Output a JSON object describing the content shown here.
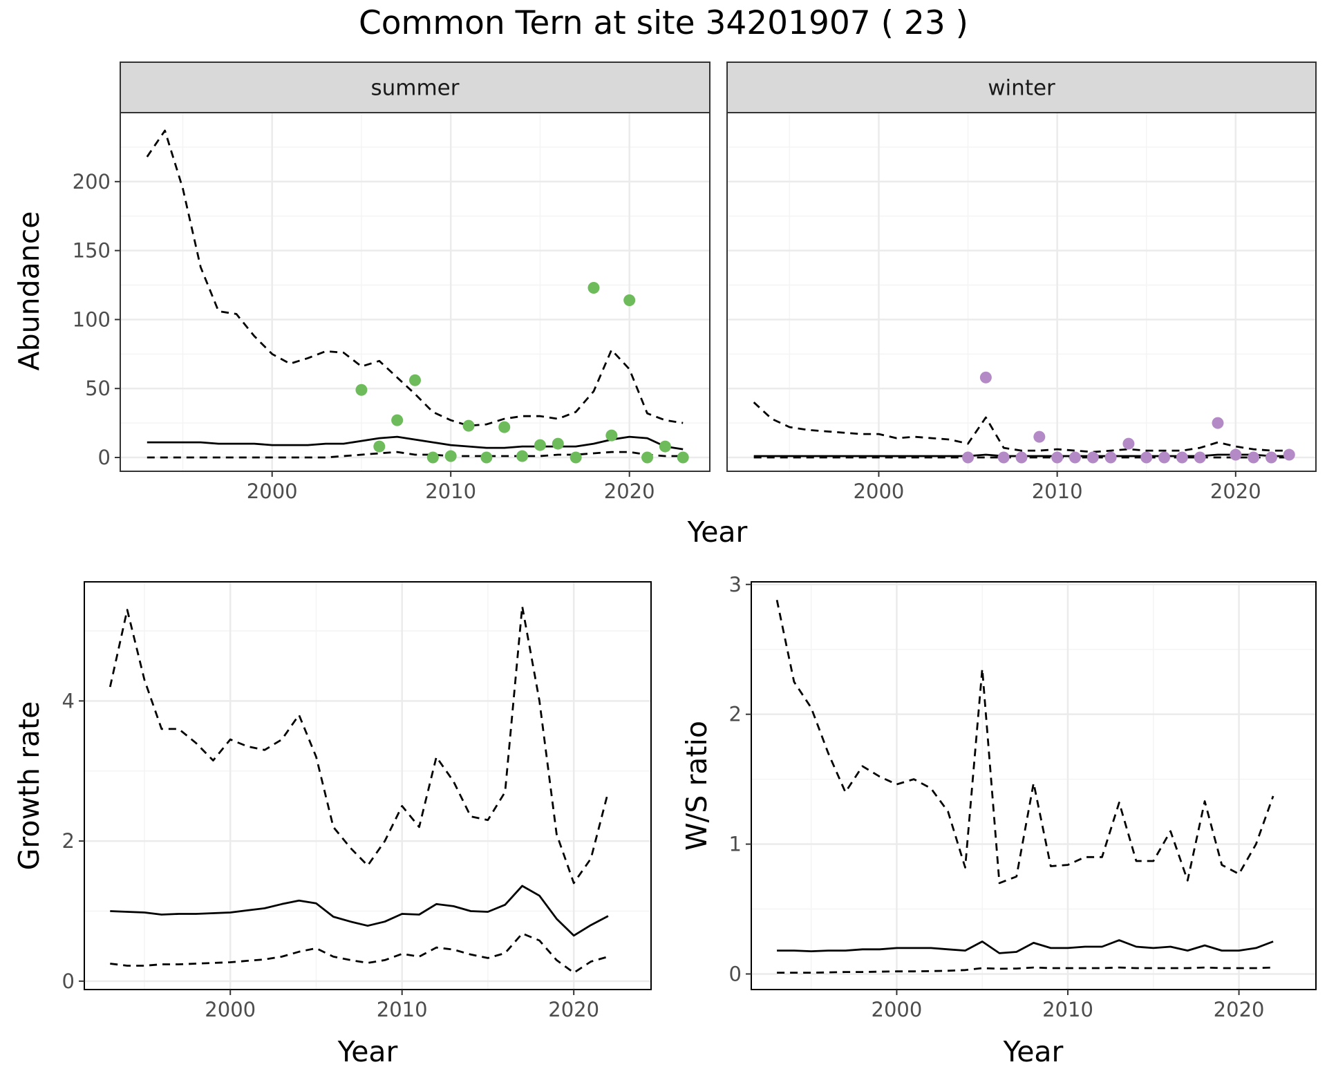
{
  "title": "Common Tern at site 34201907 ( 23 )",
  "colors": {
    "summer_points": "#6dbb5a",
    "winter_points": "#b38ac6",
    "line": "#000000",
    "panel_border": "#333333",
    "strip_fill": "#d9d9d9",
    "grid_major": "#ebebeb",
    "grid_minor": "#f4f4f4"
  },
  "chart_data": [
    {
      "type": "line",
      "panel": "summer",
      "strip": "summer",
      "xlabel": "Year",
      "ylabel": "Abundance",
      "xlim": [
        1991.5,
        2024.5
      ],
      "ylim": [
        -10,
        250
      ],
      "xticks": [
        2000,
        2010,
        2020
      ],
      "yticks": [
        0,
        50,
        100,
        150,
        200
      ],
      "grid": true,
      "x": [
        1993,
        1994,
        1995,
        1996,
        1997,
        1998,
        1999,
        2000,
        2001,
        2002,
        2003,
        2004,
        2005,
        2006,
        2007,
        2008,
        2009,
        2010,
        2011,
        2012,
        2013,
        2014,
        2015,
        2016,
        2017,
        2018,
        2019,
        2020,
        2021,
        2022,
        2023
      ],
      "series": [
        {
          "style": "solid",
          "values": [
            11,
            11,
            11,
            11,
            10,
            10,
            10,
            9,
            9,
            9,
            10,
            10,
            12,
            14,
            15,
            13,
            11,
            9,
            8,
            7,
            7,
            8,
            8,
            8,
            8,
            10,
            13,
            15,
            14,
            8,
            6
          ]
        },
        {
          "style": "dashed",
          "values": [
            218,
            237,
            195,
            138,
            106,
            104,
            88,
            75,
            68,
            72,
            77,
            76,
            66,
            70,
            58,
            46,
            33,
            27,
            23,
            24,
            28,
            30,
            30,
            28,
            33,
            48,
            78,
            64,
            32,
            27,
            25
          ]
        },
        {
          "style": "dashed",
          "values": [
            0,
            0,
            0,
            0,
            0,
            0,
            0,
            0,
            0,
            0,
            0,
            1,
            2,
            3,
            4,
            2,
            2,
            1,
            1,
            1,
            1,
            1,
            1,
            2,
            2,
            3,
            4,
            4,
            2,
            1,
            1
          ]
        }
      ],
      "points": {
        "x": [
          2005,
          2006,
          2007,
          2008,
          2009,
          2010,
          2011,
          2012,
          2013,
          2014,
          2015,
          2016,
          2017,
          2018,
          2019,
          2020,
          2021,
          2022,
          2023
        ],
        "y": [
          49,
          8,
          27,
          56,
          0,
          1,
          23,
          0,
          22,
          1,
          9,
          10,
          0,
          123,
          16,
          114,
          0,
          8,
          0
        ]
      }
    },
    {
      "type": "line",
      "panel": "winter",
      "strip": "winter",
      "xlabel": "Year",
      "ylabel": "Abundance",
      "xlim": [
        1991.5,
        2024.5
      ],
      "ylim": [
        -10,
        250
      ],
      "xticks": [
        2000,
        2010,
        2020
      ],
      "yticks": [
        0,
        50,
        100,
        150,
        200
      ],
      "grid": true,
      "x": [
        1993,
        1994,
        1995,
        1996,
        1997,
        1998,
        1999,
        2000,
        2001,
        2002,
        2003,
        2004,
        2005,
        2006,
        2007,
        2008,
        2009,
        2010,
        2011,
        2012,
        2013,
        2014,
        2015,
        2016,
        2017,
        2018,
        2019,
        2020,
        2021,
        2022,
        2023
      ],
      "series": [
        {
          "style": "solid",
          "values": [
            1,
            1,
            1,
            1,
            1,
            1,
            1,
            1,
            1,
            1,
            1,
            1,
            1,
            2,
            1,
            1,
            1,
            1,
            1,
            1,
            1,
            1,
            1,
            1,
            1,
            1,
            2,
            2,
            2,
            1,
            1
          ]
        },
        {
          "style": "dashed",
          "values": [
            40,
            28,
            22,
            20,
            19,
            18,
            17,
            17,
            14,
            15,
            14,
            13,
            10,
            29,
            7,
            5,
            5,
            6,
            5,
            4,
            5,
            6,
            5,
            5,
            5,
            7,
            11,
            8,
            6,
            5,
            5
          ]
        },
        {
          "style": "dashed",
          "values": [
            0,
            0,
            0,
            0,
            0,
            0,
            0,
            0,
            0,
            0,
            0,
            0,
            0,
            0,
            0,
            0,
            0,
            0,
            0,
            0,
            0,
            0,
            0,
            0,
            0,
            0,
            0,
            0,
            0,
            0,
            0
          ]
        }
      ],
      "points": {
        "x": [
          2005,
          2006,
          2007,
          2008,
          2009,
          2010,
          2011,
          2012,
          2013,
          2014,
          2015,
          2016,
          2017,
          2018,
          2019,
          2020,
          2021,
          2022,
          2023
        ],
        "y": [
          0,
          58,
          0,
          0,
          15,
          0,
          0,
          0,
          0,
          10,
          0,
          0,
          0,
          0,
          25,
          2,
          0,
          0,
          2
        ]
      }
    },
    {
      "type": "line",
      "panel": "growth",
      "xlabel": "Year",
      "ylabel": "Growth rate",
      "xlim": [
        1991.5,
        2024.5
      ],
      "ylim": [
        -0.12,
        5.7
      ],
      "xticks": [
        2000,
        2010,
        2020
      ],
      "yticks": [
        0,
        2,
        4
      ],
      "grid": true,
      "x": [
        1993,
        1994,
        1995,
        1996,
        1997,
        1998,
        1999,
        2000,
        2001,
        2002,
        2003,
        2004,
        2005,
        2006,
        2007,
        2008,
        2009,
        2010,
        2011,
        2012,
        2013,
        2014,
        2015,
        2016,
        2017,
        2018,
        2019,
        2020,
        2021,
        2022
      ],
      "series": [
        {
          "style": "solid",
          "values": [
            1.0,
            0.99,
            0.98,
            0.95,
            0.96,
            0.96,
            0.97,
            0.98,
            1.01,
            1.04,
            1.1,
            1.15,
            1.11,
            0.92,
            0.85,
            0.79,
            0.85,
            0.96,
            0.95,
            1.1,
            1.07,
            1.0,
            0.99,
            1.09,
            1.36,
            1.22,
            0.89,
            0.65,
            0.8,
            0.93
          ]
        },
        {
          "style": "dashed",
          "values": [
            4.2,
            5.3,
            4.3,
            3.6,
            3.6,
            3.4,
            3.15,
            3.45,
            3.35,
            3.3,
            3.45,
            3.8,
            3.2,
            2.2,
            1.9,
            1.65,
            2.0,
            2.5,
            2.2,
            3.2,
            2.85,
            2.35,
            2.3,
            2.7,
            5.35,
            4.0,
            2.1,
            1.4,
            1.75,
            2.7
          ]
        },
        {
          "style": "dashed",
          "values": [
            0.25,
            0.22,
            0.22,
            0.24,
            0.24,
            0.25,
            0.26,
            0.27,
            0.29,
            0.31,
            0.35,
            0.42,
            0.47,
            0.35,
            0.3,
            0.26,
            0.3,
            0.39,
            0.35,
            0.48,
            0.45,
            0.38,
            0.33,
            0.4,
            0.68,
            0.58,
            0.3,
            0.12,
            0.28,
            0.35
          ]
        }
      ]
    },
    {
      "type": "line",
      "panel": "ratio",
      "xlabel": "Year",
      "ylabel": "W/S ratio",
      "xlim": [
        1991.5,
        2024.5
      ],
      "ylim": [
        -0.12,
        3.02
      ],
      "xticks": [
        2000,
        2010,
        2020
      ],
      "yticks": [
        0,
        1,
        2,
        3
      ],
      "grid": true,
      "x": [
        1993,
        1994,
        1995,
        1996,
        1997,
        1998,
        1999,
        2000,
        2001,
        2002,
        2003,
        2004,
        2005,
        2006,
        2007,
        2008,
        2009,
        2010,
        2011,
        2012,
        2013,
        2014,
        2015,
        2016,
        2017,
        2018,
        2019,
        2020,
        2021,
        2022
      ],
      "series": [
        {
          "style": "solid",
          "values": [
            0.18,
            0.18,
            0.175,
            0.18,
            0.18,
            0.19,
            0.19,
            0.2,
            0.2,
            0.2,
            0.19,
            0.18,
            0.25,
            0.16,
            0.17,
            0.24,
            0.2,
            0.2,
            0.21,
            0.21,
            0.26,
            0.21,
            0.2,
            0.21,
            0.18,
            0.22,
            0.18,
            0.18,
            0.2,
            0.25
          ]
        },
        {
          "style": "dashed",
          "values": [
            2.88,
            2.25,
            2.05,
            1.7,
            1.4,
            1.6,
            1.52,
            1.46,
            1.5,
            1.43,
            1.25,
            0.82,
            2.35,
            0.7,
            0.75,
            1.47,
            0.83,
            0.84,
            0.9,
            0.9,
            1.32,
            0.87,
            0.87,
            1.1,
            0.72,
            1.33,
            0.84,
            0.77,
            1.0,
            1.37
          ]
        },
        {
          "style": "dashed",
          "values": [
            0.01,
            0.01,
            0.01,
            0.012,
            0.015,
            0.015,
            0.018,
            0.02,
            0.02,
            0.022,
            0.025,
            0.03,
            0.045,
            0.04,
            0.042,
            0.05,
            0.045,
            0.045,
            0.045,
            0.045,
            0.05,
            0.045,
            0.045,
            0.045,
            0.045,
            0.05,
            0.045,
            0.045,
            0.045,
            0.05
          ]
        }
      ]
    }
  ]
}
